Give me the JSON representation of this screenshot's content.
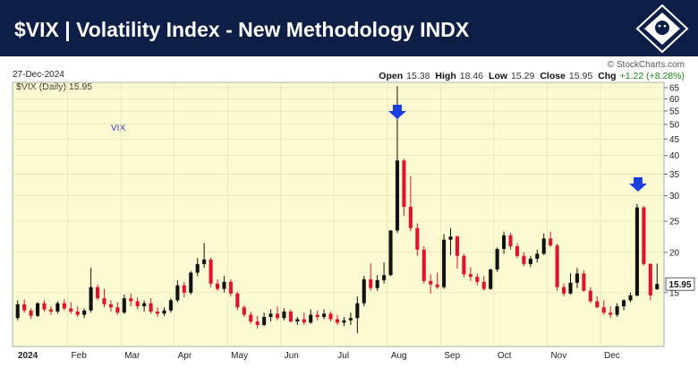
{
  "chart_data": {
    "type": "candlestick",
    "title": "$VIX | Volatility Index - New Methodology INDX",
    "date": "27-Dec-2024",
    "credit": "© StockCharts.com",
    "quote": [
      {
        "label": "Open",
        "value": "15.38"
      },
      {
        "label": "High",
        "value": "18.46"
      },
      {
        "label": "Low",
        "value": "15.29"
      },
      {
        "label": "Close",
        "value": "15.95"
      },
      {
        "label": "Chg",
        "value": "+1.22 (+8.28%)"
      }
    ],
    "legend": "$VIX (Daily) 15.95",
    "symbol_label": "VIX",
    "categories": [
      "2024",
      null,
      null,
      null,
      null,
      null,
      null,
      null,
      "Feb",
      null,
      null,
      null,
      null,
      null,
      null,
      null,
      "Mar",
      null,
      null,
      null,
      null,
      null,
      null,
      null,
      "Apr",
      null,
      null,
      null,
      null,
      null,
      null,
      null,
      "May",
      null,
      null,
      null,
      null,
      null,
      null,
      null,
      "Jun",
      null,
      null,
      null,
      null,
      null,
      null,
      null,
      "Jul",
      null,
      null,
      null,
      null,
      null,
      null,
      null,
      "Aug",
      null,
      null,
      null,
      null,
      null,
      null,
      null,
      "Sep",
      null,
      null,
      null,
      null,
      null,
      null,
      null,
      "Oct",
      null,
      null,
      null,
      null,
      null,
      null,
      null,
      "Nov",
      null,
      null,
      null,
      null,
      null,
      null,
      null,
      "Dec",
      null,
      null,
      null,
      null,
      null,
      null,
      null,
      null
    ],
    "open": [
      12.5,
      13.8,
      13.2,
      12.7,
      13.9,
      13.3,
      13.1,
      13.9,
      13.4,
      13.1,
      12.8,
      13.2,
      15.6,
      14.4,
      13.8,
      13.5,
      13.0,
      14.4,
      14.1,
      13.6,
      13.9,
      13.1,
      12.9,
      13.2,
      14.2,
      15.8,
      15.0,
      17.3,
      18.4,
      19.0,
      16.0,
      15.4,
      16.2,
      14.9,
      13.5,
      12.8,
      12.2,
      11.9,
      12.6,
      12.9,
      12.5,
      13.1,
      12.2,
      12.4,
      12.1,
      12.8,
      12.6,
      12.9,
      12.4,
      12.1,
      12.3,
      12.5,
      13.9,
      16.5,
      15.5,
      16.4,
      17.0,
      23.4,
      38.6,
      27.7,
      23.8,
      20.4,
      16.3,
      15.9,
      15.6,
      21.9,
      22.4,
      19.5,
      17.1,
      16.8,
      16.2,
      15.4,
      17.7,
      20.5,
      22.6,
      20.9,
      19.5,
      18.4,
      19.1,
      19.8,
      22.1,
      21.0,
      15.6,
      14.9,
      16.1,
      17.2,
      15.2,
      14.1,
      13.5,
      13.0,
      12.8,
      13.6,
      14.2,
      14.7,
      27.6,
      18.4,
      15.38
    ],
    "high": [
      14.2,
      14.3,
      13.4,
      14.0,
      14.2,
      13.6,
      14.1,
      14.3,
      14.0,
      13.6,
      13.4,
      17.9,
      15.9,
      15.4,
      14.2,
      14.0,
      14.8,
      14.9,
      14.5,
      14.2,
      14.4,
      13.5,
      13.5,
      14.4,
      16.4,
      16.2,
      17.5,
      19.2,
      21.4,
      19.3,
      16.5,
      16.9,
      16.5,
      15.1,
      13.7,
      13.1,
      12.7,
      13.0,
      13.3,
      13.6,
      13.4,
      13.3,
      12.6,
      13.0,
      13.3,
      13.2,
      13.3,
      13.1,
      12.8,
      12.6,
      13.0,
      14.6,
      16.9,
      18.5,
      17.0,
      18.6,
      23.4,
      65.7,
      39.0,
      34.5,
      24.6,
      20.9,
      17.1,
      17.3,
      22.8,
      23.8,
      22.6,
      19.8,
      18.0,
      17.2,
      16.9,
      17.8,
      20.7,
      23.2,
      23.0,
      21.4,
      20.0,
      19.5,
      20.4,
      22.9,
      23.2,
      21.3,
      16.0,
      17.2,
      17.9,
      17.6,
      15.6,
      14.6,
      14.2,
      13.6,
      13.9,
      14.3,
      15.0,
      28.3,
      27.9,
      18.5,
      18.46
    ],
    "low": [
      12.3,
      13.0,
      12.4,
      12.6,
      13.1,
      12.8,
      12.9,
      13.2,
      12.9,
      12.6,
      12.5,
      13.0,
      14.2,
      13.5,
      13.1,
      12.8,
      12.9,
      13.6,
      13.3,
      13.1,
      12.9,
      12.6,
      12.7,
      13.0,
      14.0,
      14.5,
      14.8,
      16.9,
      17.9,
      15.6,
      15.2,
      15.0,
      14.6,
      13.2,
      12.6,
      12.0,
      11.6,
      11.8,
      12.2,
      12.3,
      12.3,
      12.1,
      11.9,
      11.9,
      12.0,
      12.3,
      12.4,
      12.2,
      11.9,
      11.8,
      11.9,
      11.2,
      13.6,
      15.2,
      15.2,
      16.0,
      16.9,
      23.0,
      26.0,
      23.3,
      19.5,
      16.0,
      14.9,
      15.4,
      15.4,
      19.6,
      17.8,
      16.7,
      16.3,
      15.8,
      15.2,
      15.3,
      17.4,
      19.8,
      20.4,
      19.2,
      18.1,
      18.0,
      18.6,
      19.6,
      20.8,
      15.2,
      14.6,
      14.8,
      15.5,
      15.1,
      13.9,
      13.4,
      12.8,
      12.5,
      12.6,
      13.2,
      14.0,
      14.6,
      18.2,
      14.2,
      15.29
    ],
    "close": [
      13.8,
      13.2,
      12.7,
      13.9,
      13.3,
      13.1,
      13.9,
      13.4,
      13.1,
      12.8,
      13.2,
      15.6,
      14.4,
      13.8,
      13.5,
      13.0,
      14.4,
      14.1,
      13.6,
      13.9,
      13.1,
      12.9,
      13.2,
      14.2,
      15.8,
      15.0,
      17.3,
      18.4,
      19.0,
      16.0,
      15.4,
      16.2,
      14.9,
      13.5,
      12.8,
      12.2,
      11.9,
      12.6,
      12.9,
      12.5,
      13.1,
      12.2,
      12.4,
      12.1,
      12.8,
      12.6,
      12.9,
      12.4,
      12.1,
      12.3,
      12.5,
      13.9,
      16.5,
      15.5,
      16.4,
      17.0,
      23.4,
      38.6,
      27.7,
      23.8,
      20.4,
      16.3,
      15.9,
      15.6,
      21.9,
      22.4,
      19.5,
      17.1,
      16.8,
      16.2,
      15.4,
      17.7,
      20.5,
      22.6,
      20.9,
      19.5,
      18.4,
      19.1,
      19.8,
      22.1,
      21.0,
      15.6,
      14.9,
      16.1,
      17.2,
      15.2,
      14.1,
      13.5,
      13.0,
      12.8,
      13.6,
      14.2,
      14.7,
      27.6,
      18.4,
      14.7,
      15.95
    ],
    "up_color": "#111111",
    "down_color": "#e3122c",
    "log": true,
    "grid": true,
    "ylim": [
      10.2,
      67.5
    ],
    "yticks": [
      15,
      20,
      25,
      30,
      35,
      40,
      45,
      50,
      55,
      60,
      65
    ]
  }
}
